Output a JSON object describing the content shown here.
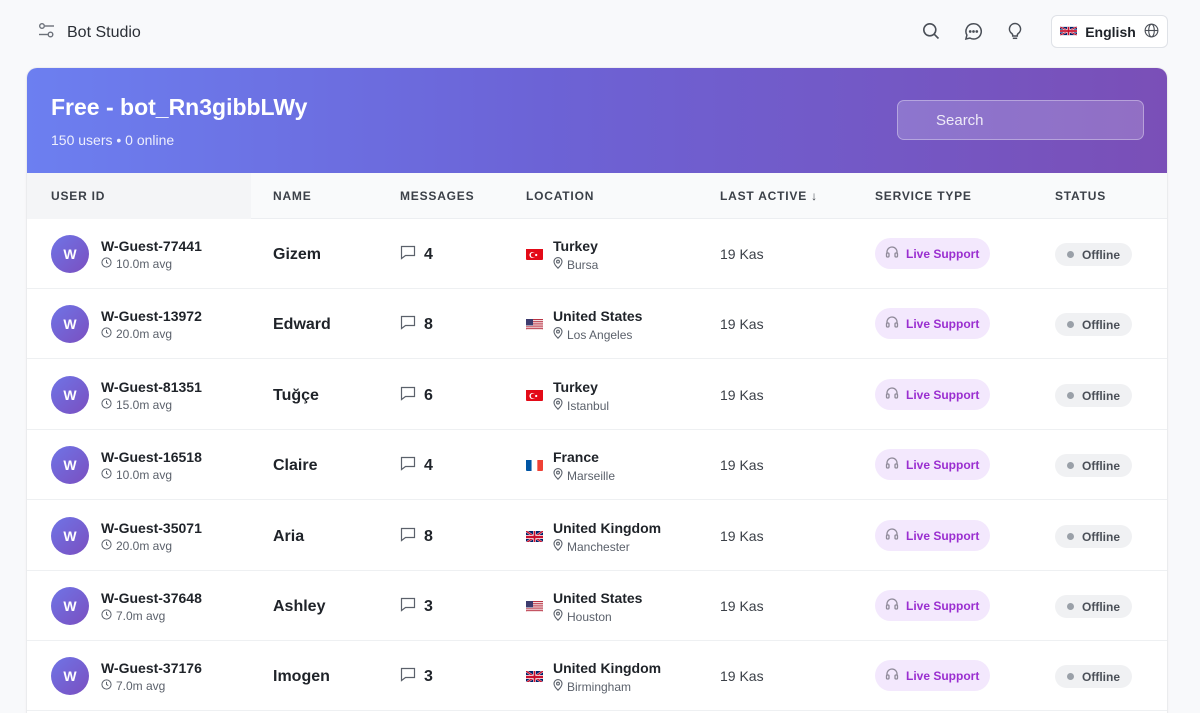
{
  "app": {
    "title": "Bot Studio",
    "logo_icon": "sliders-icon"
  },
  "top_actions": {
    "language_label": "English",
    "language_flag": "uk-flag",
    "icons": [
      "search-icon",
      "chat-icon",
      "lightbulb-icon",
      "globe-icon"
    ]
  },
  "hero": {
    "title": "Free - bot_Rn3gibbLWy",
    "subtitle": "150 users • 0 online",
    "search_placeholder": "Search"
  },
  "columns": {
    "user_id": "USER ID",
    "name": "NAME",
    "messages": "MESSAGES",
    "location": "LOCATION",
    "last_active": "LAST ACTIVE ↓",
    "service_type": "SERVICE TYPE",
    "status": "STATUS"
  },
  "rows": [
    {
      "initial": "W",
      "user_id": "W-Guest-77441",
      "avg": "10.0m avg",
      "name": "Gizem",
      "messages": "4",
      "flag": "tr",
      "country": "Turkey",
      "city": "Bursa",
      "last_active": "19 Kas",
      "service": "Live Support",
      "status": "Offline"
    },
    {
      "initial": "W",
      "user_id": "W-Guest-13972",
      "avg": "20.0m avg",
      "name": "Edward",
      "messages": "8",
      "flag": "us",
      "country": "United States",
      "city": "Los Angeles",
      "last_active": "19 Kas",
      "service": "Live Support",
      "status": "Offline"
    },
    {
      "initial": "W",
      "user_id": "W-Guest-81351",
      "avg": "15.0m avg",
      "name": "Tuğçe",
      "messages": "6",
      "flag": "tr",
      "country": "Turkey",
      "city": "Istanbul",
      "last_active": "19 Kas",
      "service": "Live Support",
      "status": "Offline"
    },
    {
      "initial": "W",
      "user_id": "W-Guest-16518",
      "avg": "10.0m avg",
      "name": "Claire",
      "messages": "4",
      "flag": "fr",
      "country": "France",
      "city": "Marseille",
      "last_active": "19 Kas",
      "service": "Live Support",
      "status": "Offline"
    },
    {
      "initial": "W",
      "user_id": "W-Guest-35071",
      "avg": "20.0m avg",
      "name": "Aria",
      "messages": "8",
      "flag": "gb",
      "country": "United Kingdom",
      "city": "Manchester",
      "last_active": "19 Kas",
      "service": "Live Support",
      "status": "Offline"
    },
    {
      "initial": "W",
      "user_id": "W-Guest-37648",
      "avg": "7.0m avg",
      "name": "Ashley",
      "messages": "3",
      "flag": "us",
      "country": "United States",
      "city": "Houston",
      "last_active": "19 Kas",
      "service": "Live Support",
      "status": "Offline"
    },
    {
      "initial": "W",
      "user_id": "W-Guest-37176",
      "avg": "7.0m avg",
      "name": "Imogen",
      "messages": "3",
      "flag": "gb",
      "country": "United Kingdom",
      "city": "Birmingham",
      "last_active": "19 Kas",
      "service": "Live Support",
      "status": "Offline"
    }
  ],
  "colors": {
    "hero_start": "#6c7ff0",
    "hero_end": "#7a4fb7",
    "service_bg": "#f3e8fd",
    "service_text": "#9a2ed0",
    "status_bg": "#f0f1f3"
  }
}
